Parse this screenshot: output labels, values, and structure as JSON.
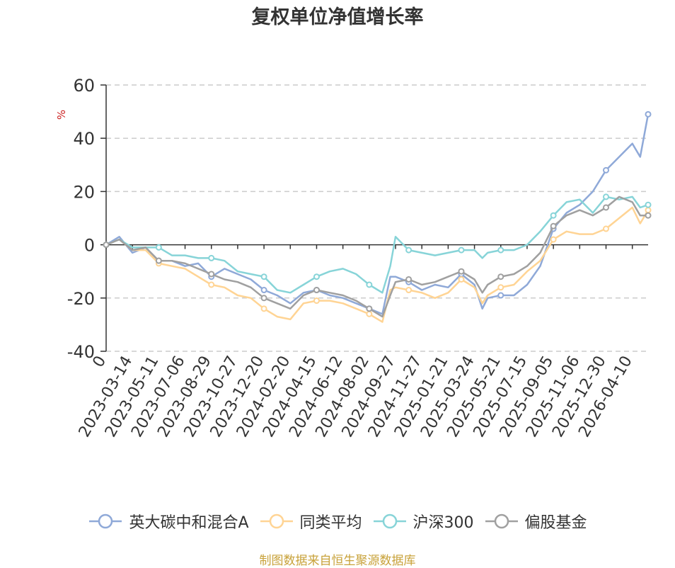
{
  "chart_data": {
    "type": "line",
    "title": "复权单位净值增长率",
    "ylabel": "%",
    "xlabel": "",
    "ylim": [
      -40,
      60
    ],
    "yticks": [
      "60",
      "40",
      "20",
      "0",
      "-20",
      "-40"
    ],
    "x_origin_label": "0",
    "x_tick_labels": [
      "2023-03-14",
      "2023-05-11",
      "2023-07-06",
      "2023-08-29",
      "2023-10-27",
      "2023-12-20",
      "2024-02-20",
      "2024-04-15",
      "2024-06-12",
      "2024-08-02",
      "2024-09-27",
      "2024-11-27",
      "2025-01-21",
      "2025-03-24",
      "2025-05-21",
      "2025-07-15",
      "2025-09-05",
      "2025-11-06",
      "2025-12-30",
      "2026-04-10"
    ],
    "x_range": [
      0,
      20.6
    ],
    "grid": true,
    "legend_position": "bottom",
    "series": [
      {
        "name": "英大碳中和混合A",
        "color": "#8fa9d8",
        "x": [
          0,
          0.5,
          1,
          1.5,
          2,
          2.5,
          3,
          3.5,
          4,
          4.5,
          5,
          5.5,
          6,
          6.5,
          7,
          7.5,
          8,
          8.5,
          9,
          9.5,
          10,
          10.5,
          10.8,
          11,
          11.5,
          12,
          12.5,
          13,
          13.5,
          14,
          14.3,
          14.5,
          15,
          15.5,
          16,
          16.5,
          17,
          17.5,
          18,
          18.5,
          19,
          19.5,
          20,
          20.3,
          20.6
        ],
        "values": [
          0,
          3,
          -3,
          -1,
          -6,
          -6,
          -8,
          -7,
          -12,
          -9,
          -11,
          -13,
          -17,
          -19,
          -22,
          -18,
          -17,
          -19,
          -20,
          -22,
          -24,
          -26,
          -12,
          -12,
          -14,
          -17,
          -15,
          -16,
          -11,
          -15,
          -24,
          -20,
          -19,
          -19,
          -15,
          -8,
          6,
          12,
          15,
          20,
          28,
          33,
          38,
          33,
          49
        ]
      },
      {
        "name": "同类平均",
        "color": "#ffd494",
        "x": [
          0,
          0.5,
          1,
          1.5,
          2,
          2.5,
          3,
          3.5,
          4,
          4.5,
          5,
          5.5,
          6,
          6.5,
          7,
          7.5,
          8,
          8.5,
          9,
          9.5,
          10,
          10.5,
          10.8,
          11,
          11.5,
          12,
          12.5,
          13,
          13.5,
          14,
          14.3,
          14.5,
          15,
          15.5,
          16,
          16.5,
          17,
          17.5,
          18,
          18.5,
          19,
          19.5,
          20,
          20.3,
          20.6
        ],
        "values": [
          0,
          2,
          -2,
          -2,
          -7,
          -8,
          -9,
          -12,
          -15,
          -16,
          -19,
          -20,
          -24,
          -27,
          -28,
          -22,
          -21,
          -21,
          -22,
          -24,
          -26,
          -29,
          -17,
          -16,
          -17,
          -18,
          -20,
          -18,
          -13,
          -16,
          -22,
          -19,
          -16,
          -15,
          -10,
          -6,
          2,
          5,
          4,
          4,
          6,
          10,
          14,
          8,
          13
        ]
      },
      {
        "name": "沪深300",
        "color": "#87d4d8",
        "x": [
          0,
          0.5,
          1,
          1.5,
          2,
          2.5,
          3,
          3.5,
          4,
          4.5,
          5,
          5.5,
          6,
          6.5,
          7,
          7.5,
          8,
          8.5,
          9,
          9.5,
          10,
          10.5,
          10.8,
          11,
          11.5,
          12,
          12.5,
          13,
          13.5,
          14,
          14.3,
          14.5,
          15,
          15.5,
          16,
          16.5,
          17,
          17.5,
          18,
          18.5,
          19,
          19.5,
          20,
          20.3,
          20.6
        ],
        "values": [
          0,
          2,
          -1,
          -1,
          -1,
          -4,
          -4,
          -5,
          -5,
          -6,
          -10,
          -11,
          -12,
          -17,
          -18,
          -15,
          -12,
          -10,
          -9,
          -11,
          -15,
          -18,
          -8,
          3,
          -2,
          -3,
          -4,
          -3,
          -2,
          -2,
          -5,
          -3,
          -2,
          -2,
          0,
          5,
          11,
          16,
          17,
          12,
          18,
          17,
          18,
          14,
          15
        ]
      },
      {
        "name": "偏股基金",
        "color": "#a0a0a0",
        "x": [
          0,
          0.5,
          1,
          1.5,
          2,
          2.5,
          3,
          3.5,
          4,
          4.5,
          5,
          5.5,
          6,
          6.5,
          7,
          7.5,
          8,
          8.5,
          9,
          9.5,
          10,
          10.5,
          10.8,
          11,
          11.5,
          12,
          12.5,
          13,
          13.5,
          14,
          14.3,
          14.5,
          15,
          15.5,
          16,
          16.5,
          17,
          17.5,
          18,
          18.5,
          19,
          19.5,
          20,
          20.3,
          20.6
        ],
        "values": [
          0,
          2,
          -2,
          -1,
          -6,
          -6,
          -7,
          -9,
          -11,
          -13,
          -14,
          -16,
          -20,
          -22,
          -24,
          -19,
          -17,
          -18,
          -19,
          -21,
          -24,
          -27,
          -19,
          -14,
          -13,
          -15,
          -14,
          -12,
          -10,
          -13,
          -18,
          -15,
          -12,
          -11,
          -8,
          -3,
          7,
          11,
          13,
          11,
          14,
          18,
          16,
          11,
          11
        ]
      }
    ]
  },
  "source_note": "制图数据来自恒生聚源数据库"
}
